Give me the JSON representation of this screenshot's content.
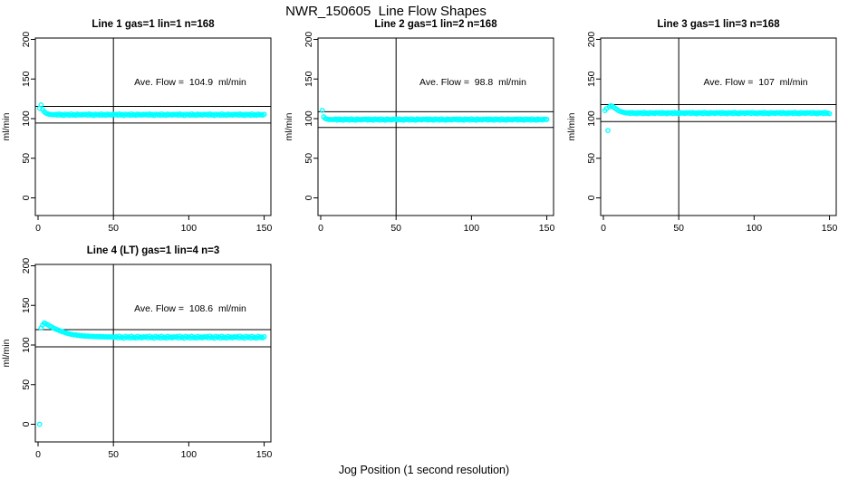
{
  "figure": {
    "main_title": "NWR_150605  Line Flow Shapes",
    "x_axis_label": "Jog Position (1 second resolution)",
    "point_color": "#00ffff",
    "line_color": "#000000",
    "background": "#ffffff"
  },
  "chart_data": [
    {
      "type": "scatter",
      "title": "Line 1 gas=1 lin=1 n=168",
      "annotation": "Ave. Flow =  104.9  ml/min",
      "ave_flow_ml_min": 104.9,
      "n": 168,
      "ylabel": "ml/min",
      "yticks": [
        0,
        50,
        100,
        150,
        200
      ],
      "xticks": [
        0,
        50,
        100,
        150
      ],
      "ylim": [
        -22,
        205
      ],
      "xlim": [
        -2,
        154
      ],
      "vline_x": 50,
      "hlines": [
        115.4,
        94.4
      ],
      "x_start": 1,
      "x_step": 1,
      "y": [
        113.2,
        117.3,
        111.6,
        108.9,
        107.2,
        106.3,
        105.7,
        105.3,
        105.1,
        104.9,
        104.9,
        105.5,
        104.3,
        105.8,
        104.6,
        105.1,
        103.9,
        105.6,
        104.8,
        105.3,
        104.2,
        105.9,
        104.5,
        105.0,
        104.1,
        105.7,
        104.7,
        105.2,
        104.4,
        105.5,
        104.9,
        105.5,
        104.3,
        105.8,
        104.6,
        105.1,
        103.9,
        105.6,
        104.8,
        105.3,
        104.2,
        105.9,
        104.5,
        105.0,
        104.1,
        105.7,
        104.7,
        105.2,
        104.4,
        105.5,
        104.9,
        105.5,
        104.3,
        105.8,
        104.6,
        105.1,
        103.9,
        105.6,
        104.8,
        105.3,
        104.2,
        105.9,
        104.5,
        105.0,
        104.1,
        105.7,
        104.7,
        105.2,
        104.4,
        105.5,
        104.9,
        105.5,
        104.3,
        105.8,
        104.6,
        105.1,
        103.9,
        105.6,
        104.8,
        105.3,
        104.2,
        105.9,
        104.5,
        105.0,
        104.1,
        105.7,
        104.7,
        105.2,
        104.4,
        105.5,
        104.9,
        105.5,
        104.3,
        105.8,
        104.6,
        105.1,
        103.9,
        105.6,
        104.8,
        105.3,
        104.2,
        105.9,
        104.5,
        105.0,
        104.1,
        105.7,
        104.7,
        105.2,
        104.4,
        105.5,
        104.9,
        105.5,
        104.3,
        105.8,
        104.6,
        105.1,
        103.9,
        105.6,
        104.8,
        105.3,
        104.2,
        105.9,
        104.5,
        105.0,
        104.1,
        105.7,
        104.7,
        105.2,
        104.4,
        105.5,
        104.9,
        105.5,
        104.3,
        105.8,
        104.6,
        105.1,
        103.9,
        105.6,
        104.8,
        105.3,
        104.2,
        105.9,
        104.5,
        105.0,
        104.1,
        105.7,
        104.7,
        105.2,
        104.4,
        105.5
      ]
    },
    {
      "type": "scatter",
      "title": "Line 2 gas=1 lin=2 n=168",
      "annotation": "Ave. Flow =  98.8  ml/min",
      "ave_flow_ml_min": 98.8,
      "n": 168,
      "ylabel": "ml/min",
      "yticks": [
        0,
        50,
        100,
        150,
        200
      ],
      "xticks": [
        0,
        50,
        100,
        150
      ],
      "ylim": [
        -22,
        205
      ],
      "xlim": [
        -2,
        154
      ],
      "vline_x": 50,
      "hlines": [
        108.7,
        88.9
      ],
      "x_start": 1,
      "x_step": 1,
      "y": [
        110.4,
        102.3,
        100.1,
        99.4,
        99.1,
        98.9,
        98.8,
        98.8,
        98.8,
        99.4,
        98.2,
        99.7,
        98.5,
        99.0,
        97.9,
        99.5,
        98.7,
        99.2,
        98.1,
        99.8,
        98.4,
        98.9,
        98.0,
        99.6,
        98.6,
        99.1,
        98.3,
        99.3,
        98.8,
        99.4,
        98.2,
        99.7,
        98.5,
        99.0,
        97.9,
        99.5,
        98.7,
        99.2,
        98.1,
        99.8,
        98.4,
        98.9,
        98.0,
        99.6,
        98.6,
        99.1,
        98.3,
        99.3,
        98.8,
        99.4,
        98.2,
        99.7,
        98.5,
        99.0,
        97.9,
        99.5,
        98.7,
        99.2,
        98.1,
        99.8,
        98.4,
        98.9,
        98.0,
        99.6,
        98.6,
        99.1,
        98.3,
        99.3,
        98.8,
        99.4,
        98.2,
        99.7,
        98.5,
        99.0,
        97.9,
        99.5,
        98.7,
        99.2,
        98.1,
        99.8,
        98.4,
        98.9,
        98.0,
        99.6,
        98.6,
        99.1,
        98.3,
        99.3,
        98.8,
        99.4,
        98.2,
        99.7,
        98.5,
        99.0,
        97.9,
        99.5,
        98.7,
        99.2,
        98.1,
        99.8,
        98.4,
        98.9,
        98.0,
        99.6,
        98.6,
        99.1,
        98.3,
        99.3,
        98.8,
        99.4,
        98.2,
        99.7,
        98.5,
        99.0,
        97.9,
        99.5,
        98.7,
        99.2,
        98.1,
        99.8,
        98.4,
        98.9,
        98.0,
        99.6,
        98.6,
        99.1,
        98.3,
        99.3,
        98.8,
        99.4,
        98.2,
        99.7,
        98.5,
        99.0,
        97.9,
        99.5,
        98.7,
        99.2,
        98.1,
        99.8,
        98.4,
        98.9,
        98.0,
        99.6,
        98.6,
        99.1,
        98.3,
        99.3,
        98.8,
        99.0
      ]
    },
    {
      "type": "scatter",
      "title": "Line 3 gas=1 lin=3 n=168",
      "annotation": "Ave. Flow =  107  ml/min",
      "ave_flow_ml_min": 107,
      "n": 168,
      "ylabel": "ml/min",
      "yticks": [
        0,
        50,
        100,
        150,
        200
      ],
      "xticks": [
        0,
        50,
        100,
        150
      ],
      "ylim": [
        -22,
        205
      ],
      "xlim": [
        -2,
        154
      ],
      "vline_x": 50,
      "hlines": [
        117.7,
        96.3
      ],
      "x_start": 1,
      "x_step": 1,
      "y": [
        110.2,
        112.6,
        85.0,
        114.8,
        116.2,
        115.6,
        114.3,
        112.8,
        111.4,
        110.2,
        109.3,
        108.6,
        108.1,
        107.7,
        107.4,
        107.0,
        107.6,
        106.4,
        107.9,
        106.7,
        107.2,
        106.1,
        107.7,
        106.9,
        107.4,
        106.3,
        108.0,
        106.6,
        107.1,
        106.2,
        107.8,
        106.8,
        107.3,
        106.5,
        107.5,
        107.0,
        107.6,
        106.4,
        107.9,
        106.7,
        107.2,
        106.1,
        107.7,
        106.9,
        107.4,
        106.3,
        108.0,
        106.6,
        107.1,
        106.2,
        107.8,
        106.8,
        107.3,
        106.5,
        107.5,
        107.0,
        107.6,
        106.4,
        107.9,
        106.7,
        107.2,
        106.1,
        107.7,
        106.9,
        107.4,
        106.3,
        108.0,
        106.6,
        107.1,
        106.2,
        107.8,
        106.8,
        107.3,
        106.5,
        107.5,
        107.0,
        107.6,
        106.4,
        107.9,
        106.7,
        107.2,
        106.1,
        107.7,
        106.9,
        107.4,
        106.3,
        108.0,
        106.6,
        107.1,
        106.2,
        107.8,
        106.8,
        107.3,
        106.5,
        107.5,
        107.0,
        107.6,
        106.4,
        107.9,
        106.7,
        107.2,
        106.1,
        107.7,
        106.9,
        107.4,
        106.3,
        108.0,
        106.6,
        107.1,
        106.2,
        107.8,
        106.8,
        107.3,
        106.5,
        107.5,
        107.0,
        107.6,
        106.4,
        107.9,
        106.7,
        107.2,
        106.1,
        107.7,
        106.9,
        107.4,
        106.3,
        108.0,
        106.6,
        107.1,
        106.2,
        107.8,
        106.8,
        107.3,
        106.5,
        107.5,
        107.0,
        107.6,
        106.4,
        107.9,
        106.7,
        107.2,
        106.1,
        107.7,
        106.9,
        107.4,
        106.3,
        108.0,
        106.6,
        107.1,
        106.2
      ]
    },
    {
      "type": "scatter",
      "title": "Line 4 (LT) gas=1 lin=4 n=3",
      "annotation": "Ave. Flow =  108.6  ml/min",
      "ave_flow_ml_min": 108.6,
      "n": 3,
      "ylabel": "ml/min",
      "yticks": [
        0,
        50,
        100,
        150,
        200
      ],
      "xticks": [
        0,
        50,
        100,
        150
      ],
      "ylim": [
        -22,
        205
      ],
      "xlim": [
        -2,
        154
      ],
      "vline_x": 50,
      "hlines": [
        119.5,
        97.7
      ],
      "x_start": 1,
      "x_step": 1,
      "y": [
        0.0,
        121.5,
        125.2,
        127.8,
        127.0,
        126.1,
        125.0,
        123.8,
        122.9,
        121.7,
        120.8,
        119.9,
        119.2,
        118.3,
        117.6,
        116.9,
        116.3,
        115.6,
        115.0,
        114.5,
        114.0,
        113.6,
        113.2,
        112.8,
        112.9,
        112.1,
        112.3,
        111.7,
        111.9,
        111.3,
        111.6,
        111.0,
        111.4,
        110.8,
        111.2,
        110.6,
        111.0,
        110.5,
        110.9,
        110.3,
        110.8,
        110.2,
        110.7,
        110.1,
        110.6,
        110.0,
        110.5,
        109.9,
        110.4,
        109.8,
        109.8,
        110.6,
        108.9,
        111.2,
        109.3,
        110.1,
        108.6,
        110.9,
        109.6,
        110.3,
        108.8,
        111.0,
        109.1,
        110.0,
        108.7,
        110.8,
        109.4,
        110.2,
        109.0,
        110.5,
        109.8,
        110.6,
        108.9,
        111.2,
        109.3,
        110.1,
        108.6,
        110.9,
        109.6,
        110.3,
        108.8,
        111.0,
        109.1,
        110.0,
        108.7,
        110.8,
        109.4,
        110.2,
        109.0,
        110.5,
        109.8,
        110.6,
        108.9,
        111.2,
        109.3,
        110.1,
        108.6,
        110.9,
        109.6,
        110.3,
        108.8,
        111.0,
        109.1,
        110.0,
        108.7,
        110.8,
        109.4,
        110.2,
        109.0,
        110.5,
        109.8,
        110.6,
        108.9,
        111.2,
        109.3,
        110.1,
        108.6,
        110.9,
        109.6,
        110.3,
        108.8,
        111.0,
        109.1,
        110.0,
        108.7,
        110.8,
        109.4,
        110.2,
        109.0,
        110.5,
        109.8,
        110.6,
        108.9,
        111.2,
        109.3,
        110.1,
        108.6,
        110.9,
        109.6,
        110.3,
        108.8,
        111.0,
        109.1,
        110.0,
        108.7,
        110.8,
        109.4,
        110.2,
        109.0,
        110.5
      ]
    }
  ]
}
